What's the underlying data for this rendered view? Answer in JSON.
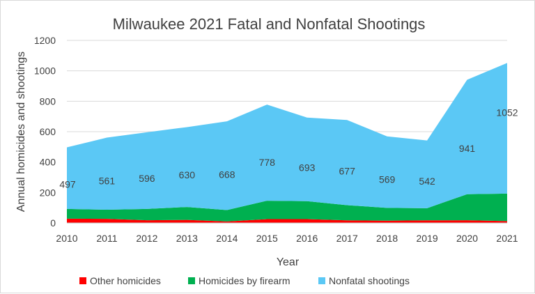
{
  "chart_data": {
    "type": "area",
    "stacked": true,
    "title": "Milwaukee 2021 Fatal and Nonfatal Shootings",
    "xlabel": "Year",
    "ylabel": "Annual homicides and shootings",
    "ylim": [
      0,
      1200
    ],
    "yticks": [
      0,
      200,
      400,
      600,
      800,
      1000,
      1200
    ],
    "grid": true,
    "legend_position": "bottom",
    "x": [
      "2010",
      "2011",
      "2012",
      "2013",
      "2014",
      "2015",
      "2016",
      "2017",
      "2018",
      "2019",
      "2020",
      "2021"
    ],
    "series": [
      {
        "name": "Other homicides",
        "color": "#ff0000",
        "values": [
          28,
          27,
          18,
          20,
          10,
          25,
          25,
          17,
          15,
          17,
          18,
          12
        ]
      },
      {
        "name": "Homicides by firearm",
        "color": "#00b050",
        "values": [
          64,
          60,
          74,
          85,
          75,
          121,
          118,
          100,
          84,
          80,
          171,
          181
        ]
      },
      {
        "name": "Nonfatal shootings",
        "color": "#5bc8f5",
        "values": [
          405,
          474,
          504,
          525,
          583,
          632,
          550,
          560,
          470,
          445,
          752,
          859
        ]
      }
    ],
    "data_labels": [
      "497",
      "561",
      "596",
      "630",
      "668",
      "778",
      "693",
      "677",
      "569",
      "542",
      "941",
      "1052"
    ]
  }
}
